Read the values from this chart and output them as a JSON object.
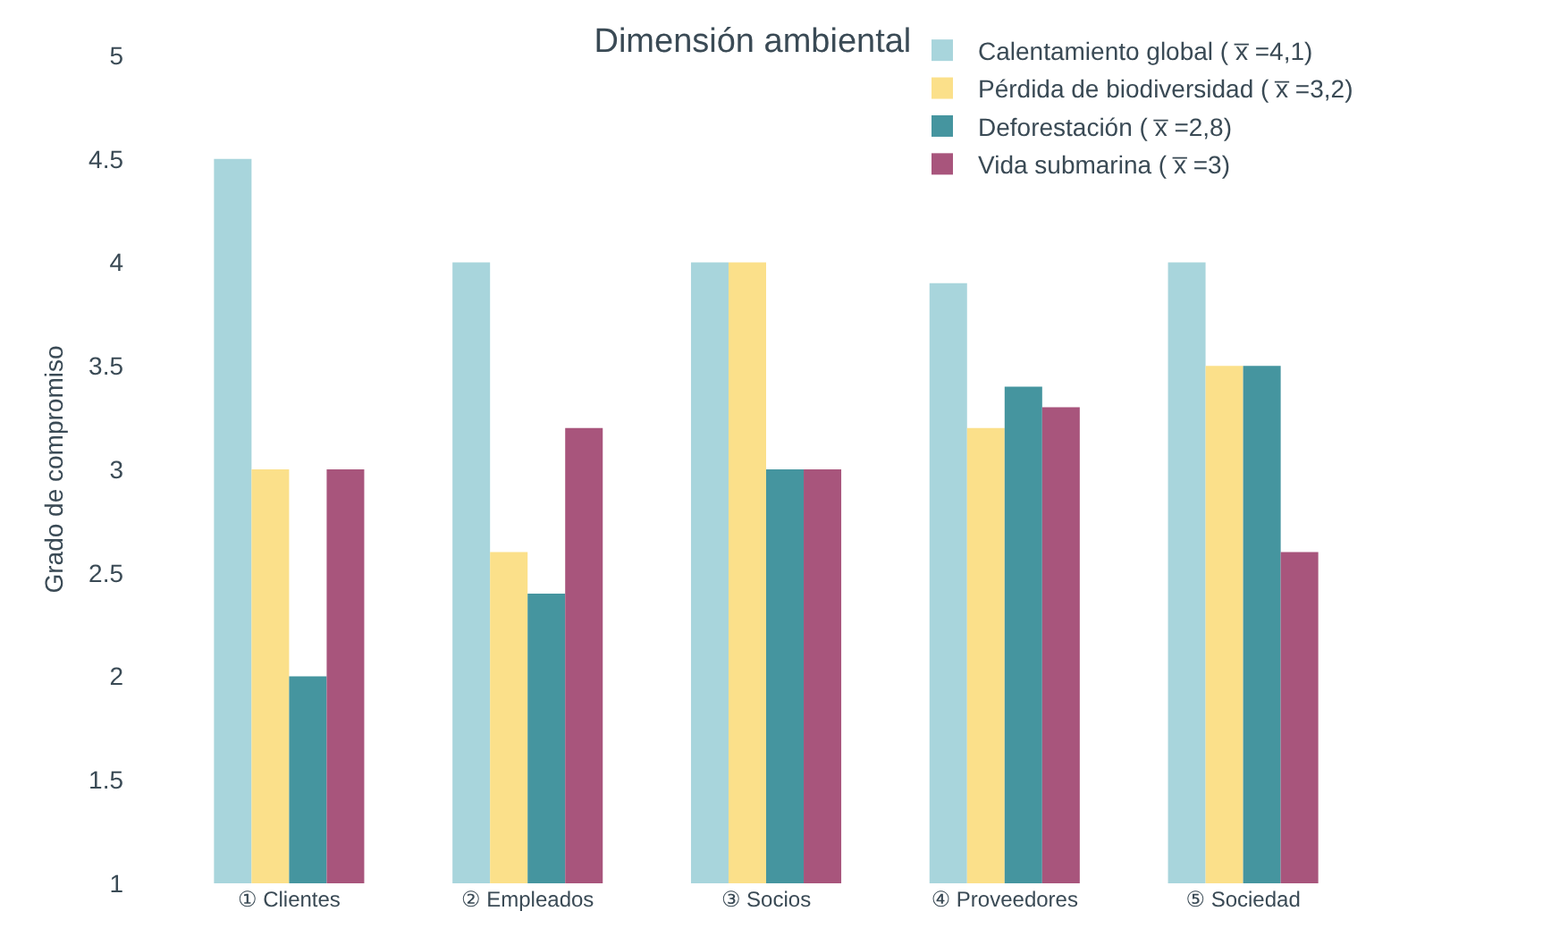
{
  "chart_data": {
    "type": "bar",
    "title": "Dimensión ambiental",
    "ylabel": "Grado de compromiso",
    "categories": [
      "① Clientes",
      "② Empleados",
      "③ Socios",
      "④ Proveedores",
      "⑤ Sociedad"
    ],
    "series": [
      {
        "name": "Calentamiento global ( x̅ =4,1)",
        "color": "#a8d5dc",
        "values": [
          4.5,
          4,
          4,
          3.9,
          4
        ]
      },
      {
        "name": "Pérdida de biodiversidad ( x̅ =3,2)",
        "color": "#fbe08a",
        "values": [
          3,
          2.6,
          4,
          3.2,
          3.5
        ]
      },
      {
        "name": "Deforestación ( x̅ =2,8)",
        "color": "#45959f",
        "values": [
          2,
          2.4,
          3,
          3.4,
          3.5
        ]
      },
      {
        "name": "Vida submarina ( x̅ =3)",
        "color": "#a8557c",
        "values": [
          3,
          3.2,
          3,
          3.3,
          2.6
        ]
      }
    ],
    "ylim": [
      1,
      5
    ],
    "yticks": [
      1,
      1.5,
      2,
      2.5,
      3,
      3.5,
      4,
      4.5,
      5
    ],
    "grid": false,
    "legend": "top right"
  }
}
